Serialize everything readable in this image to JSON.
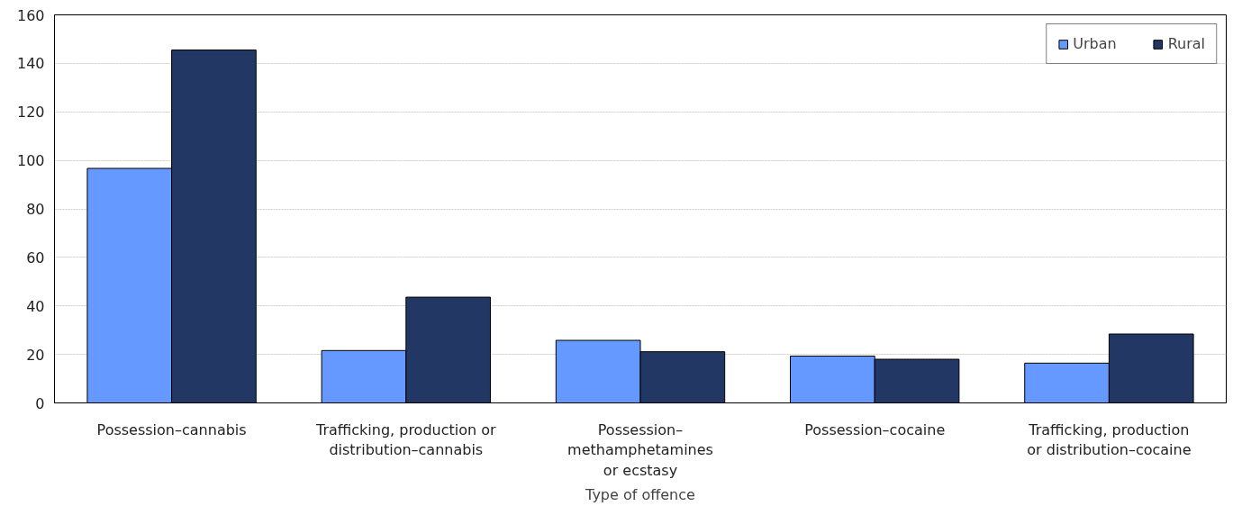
{
  "chart_data": {
    "type": "bar",
    "xlabel": "Type of offence",
    "categories": [
      "Possession–cannabis",
      "Trafficking, production or\ndistribution–cannabis",
      "Possession–\nmethamphetamines\nor ecstasy",
      "Possession–cocaine",
      "Trafficking, production\nor distribution–cocaine"
    ],
    "series": [
      {
        "name": "Urban",
        "color": "#6699ff",
        "values": [
          96.7,
          21.6,
          25.8,
          19.3,
          16.4
        ]
      },
      {
        "name": "Rural",
        "color": "#223763",
        "values": [
          145.5,
          43.6,
          21.1,
          18.0,
          28.4
        ]
      }
    ],
    "ylim": [
      0,
      160
    ],
    "yticks": [
      0,
      20,
      40,
      60,
      80,
      100,
      120,
      140,
      160
    ],
    "grid": "y",
    "legend": "top right"
  }
}
